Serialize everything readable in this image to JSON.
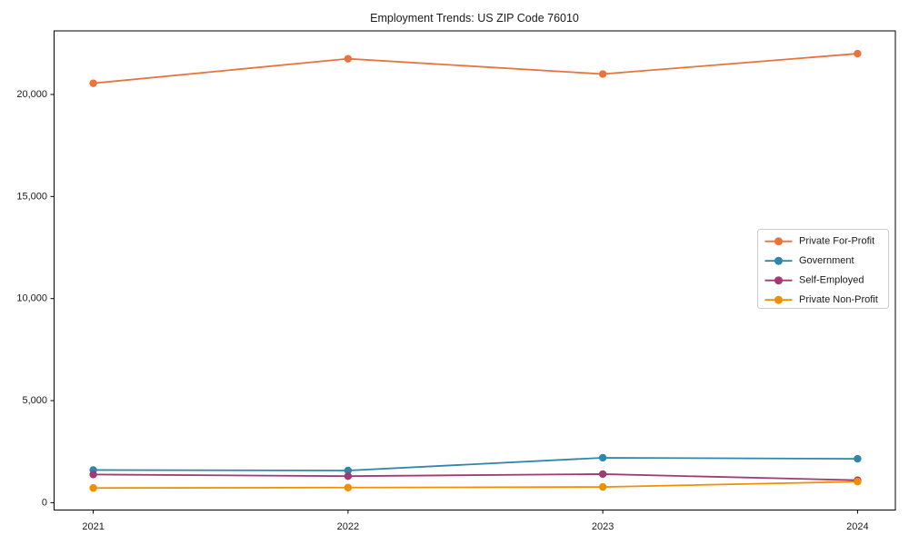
{
  "figure": {
    "background": "#ffffff"
  },
  "chart_data": {
    "type": "line",
    "title": "Employment Trends: US ZIP Code 76010",
    "categories": [
      "2021",
      "2022",
      "2023",
      "2024"
    ],
    "series": [
      {
        "name": "Private For-Profit",
        "color": "#E8743B",
        "values": [
          20550,
          21750,
          21000,
          22000
        ]
      },
      {
        "name": "Government",
        "color": "#2E86AB",
        "values": [
          1600,
          1575,
          2200,
          2150
        ]
      },
      {
        "name": "Self-Employed",
        "color": "#A23B72",
        "values": [
          1380,
          1300,
          1400,
          1100
        ]
      },
      {
        "name": "Private Non-Profit",
        "color": "#F18F01",
        "values": [
          720,
          740,
          770,
          1030
        ]
      }
    ],
    "xlabel": "",
    "ylabel": "",
    "xtick_labels": [
      "2021",
      "2022",
      "2023",
      "2024"
    ],
    "yticks": [
      {
        "value": 0,
        "label": "0"
      },
      {
        "value": 5000,
        "label": "5,000"
      },
      {
        "value": 10000,
        "label": "10,000"
      },
      {
        "value": 15000,
        "label": "15,000"
      },
      {
        "value": 20000,
        "label": "20,000"
      }
    ],
    "ylim": [
      -360,
      23100
    ],
    "grid": false,
    "marker": "circle",
    "legend_position": "center-right"
  },
  "style_colors": {
    "axis": "#000000",
    "tick_label": "#1a1a1a",
    "legend_border": "#cccccc",
    "legend_background": "#ffffff"
  }
}
